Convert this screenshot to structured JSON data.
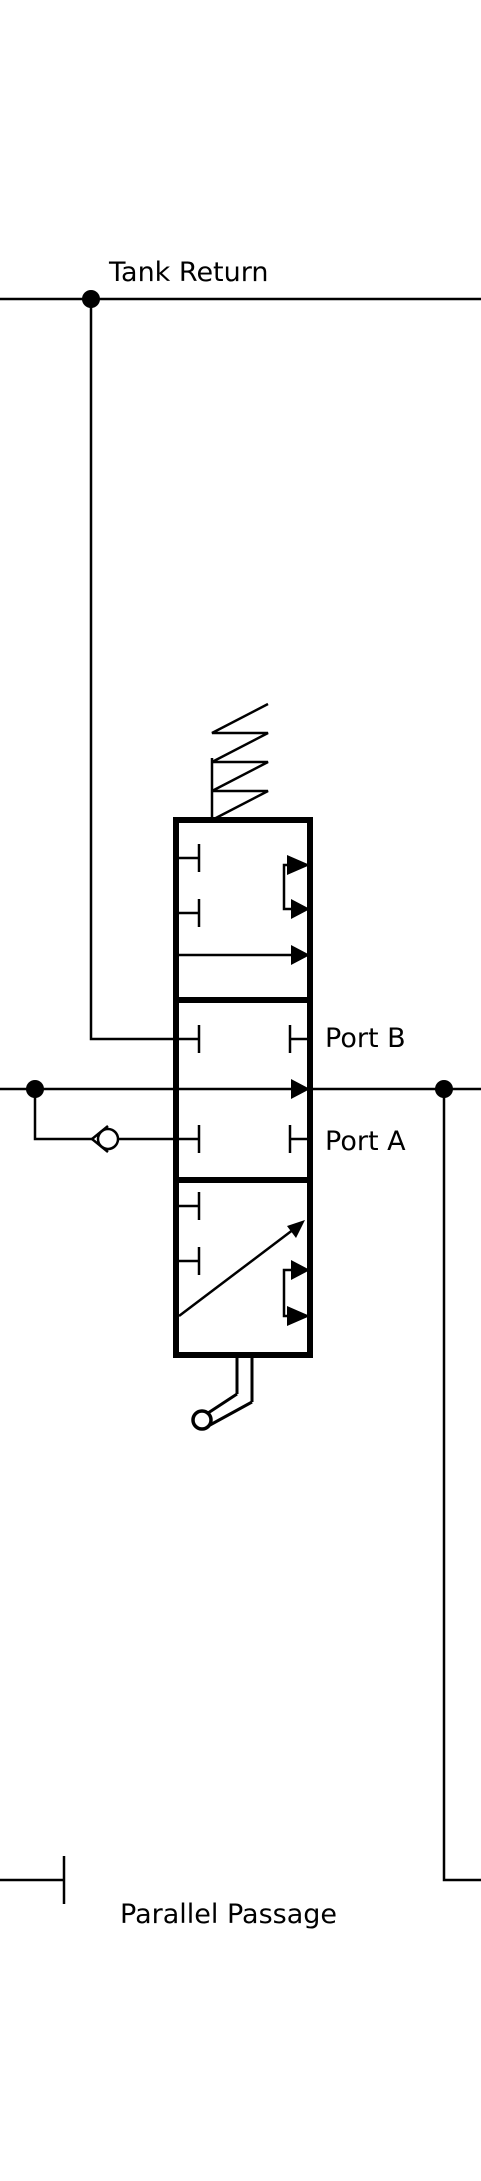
{
  "labels": {
    "tank_return": "Tank Return",
    "port_b": "Port B",
    "port_a": "Port A",
    "parallel_passage": "Parallel Passage"
  }
}
